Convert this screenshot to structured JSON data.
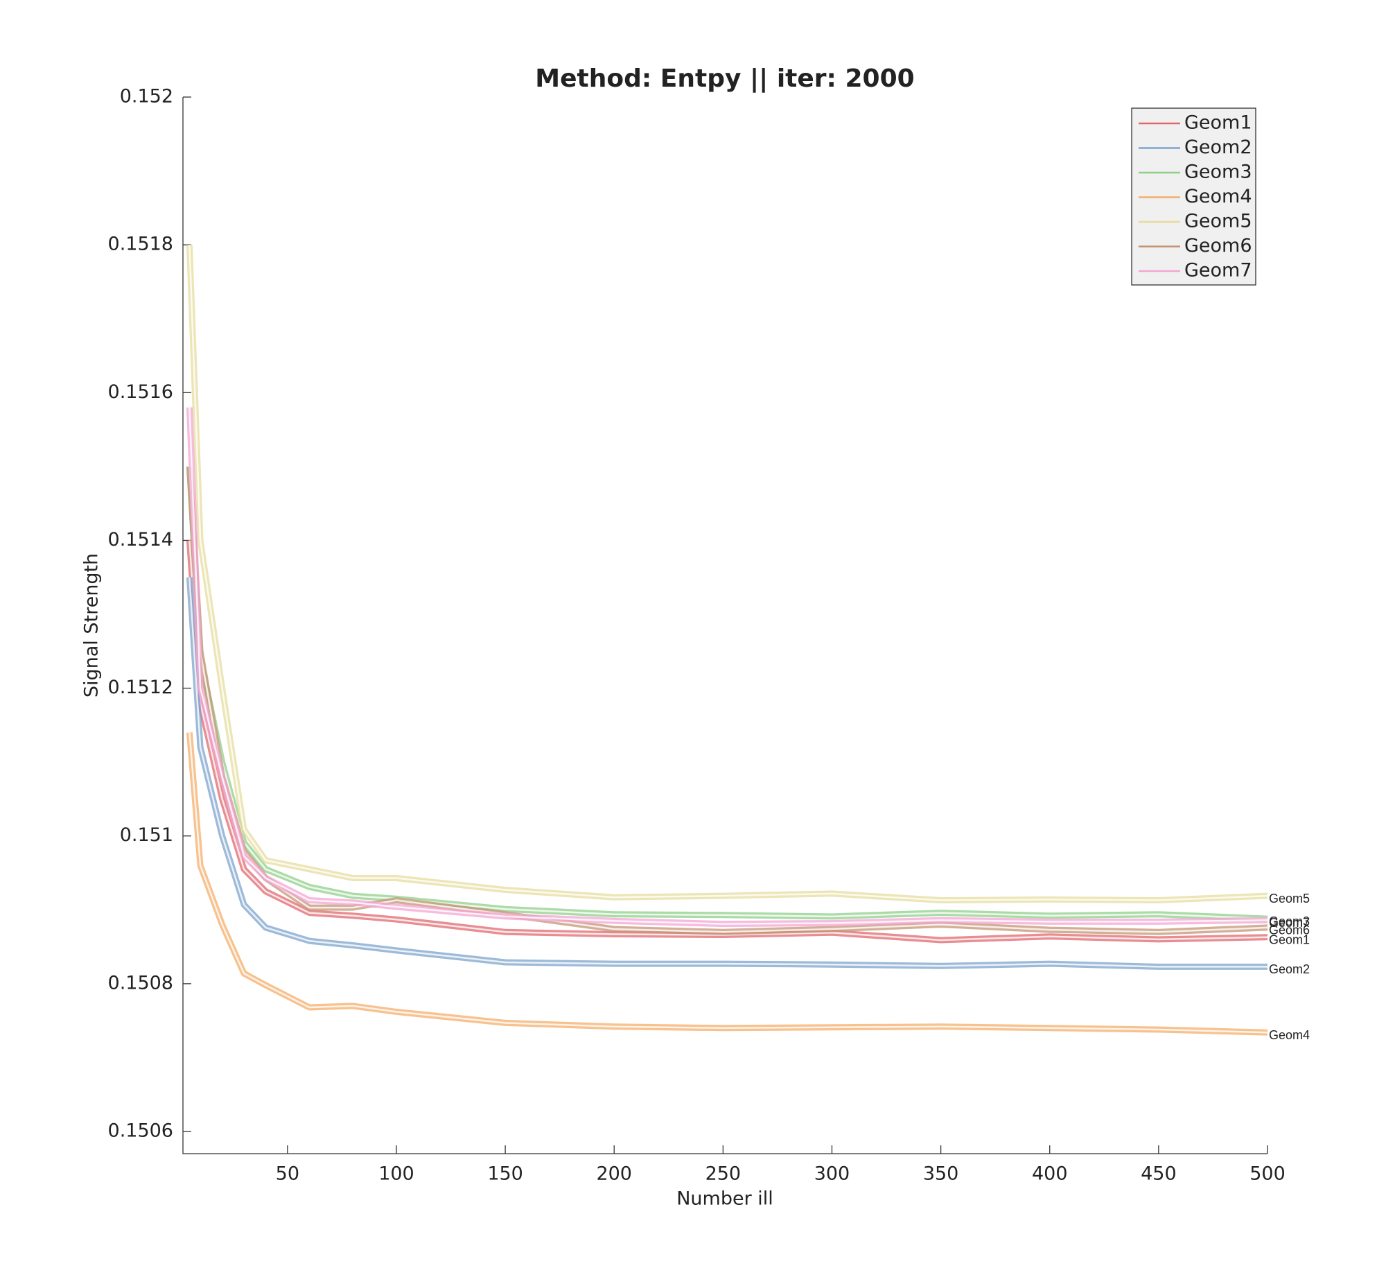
{
  "chart_data": {
    "type": "line",
    "title": "Method: Entpy || iter: 2000",
    "x_label": "Number ill",
    "y_label": "Signal Strength",
    "x": [
      5,
      10,
      20,
      30,
      40,
      60,
      80,
      100,
      150,
      200,
      250,
      300,
      350,
      400,
      450,
      500
    ],
    "xlim": [
      2,
      500
    ],
    "xticks": [
      50,
      100,
      150,
      200,
      250,
      300,
      350,
      400,
      450,
      500
    ],
    "ylim": [
      0.15057,
      0.152
    ],
    "yticks": [
      0.1506,
      0.1508,
      0.151,
      0.1512,
      0.1514,
      0.1516,
      0.1518,
      0.152
    ],
    "legend": "top-right",
    "end_labels": true,
    "series": [
      {
        "name": "Geom1",
        "color": "#e0676e",
        "values": [
          0.1514,
          0.15118,
          0.15105,
          0.150955,
          0.150925,
          0.150896,
          0.150892,
          0.150887,
          0.15087,
          0.150867,
          0.150866,
          0.150869,
          0.150859,
          0.150864,
          0.15086,
          0.150863
        ]
      },
      {
        "name": "Geom2",
        "color": "#7ca3cc",
        "values": [
          0.15135,
          0.15112,
          0.151,
          0.150907,
          0.150876,
          0.150858,
          0.150852,
          0.150845,
          0.150829,
          0.150827,
          0.150827,
          0.150826,
          0.150824,
          0.150827,
          0.150823,
          0.150823
        ]
      },
      {
        "name": "Geom3",
        "color": "#8fcf8a",
        "values": [
          0.1515,
          0.15124,
          0.1511,
          0.150991,
          0.150955,
          0.150931,
          0.150919,
          0.150915,
          0.150901,
          0.150894,
          0.150893,
          0.150891,
          0.150896,
          0.150892,
          0.150894,
          0.150888
        ]
      },
      {
        "name": "Geom4",
        "color": "#f4ad6a",
        "values": [
          0.15114,
          0.15096,
          0.15088,
          0.150814,
          0.150798,
          0.150768,
          0.15077,
          0.150762,
          0.150747,
          0.150742,
          0.15074,
          0.150741,
          0.150742,
          0.15074,
          0.150738,
          0.150734
        ]
      },
      {
        "name": "Geom5",
        "color": "#e5dc9e",
        "values": [
          0.1518,
          0.1514,
          0.1512,
          0.151009,
          0.150967,
          0.150955,
          0.150943,
          0.150943,
          0.150927,
          0.150917,
          0.150919,
          0.150922,
          0.150913,
          0.150914,
          0.150913,
          0.150919
        ]
      },
      {
        "name": "Geom6",
        "color": "#c49474",
        "values": [
          0.1515,
          0.15125,
          0.15108,
          0.150979,
          0.150943,
          0.150903,
          0.150903,
          0.150913,
          0.150894,
          0.150874,
          0.15087,
          0.150874,
          0.15088,
          0.150873,
          0.15087,
          0.150876
        ]
      },
      {
        "name": "Geom7",
        "color": "#f3a6d3",
        "values": [
          0.15158,
          0.1512,
          0.15108,
          0.150973,
          0.150943,
          0.150913,
          0.15091,
          0.150904,
          0.150891,
          0.150885,
          0.150881,
          0.150882,
          0.150886,
          0.150884,
          0.150884,
          0.150886
        ]
      }
    ]
  }
}
